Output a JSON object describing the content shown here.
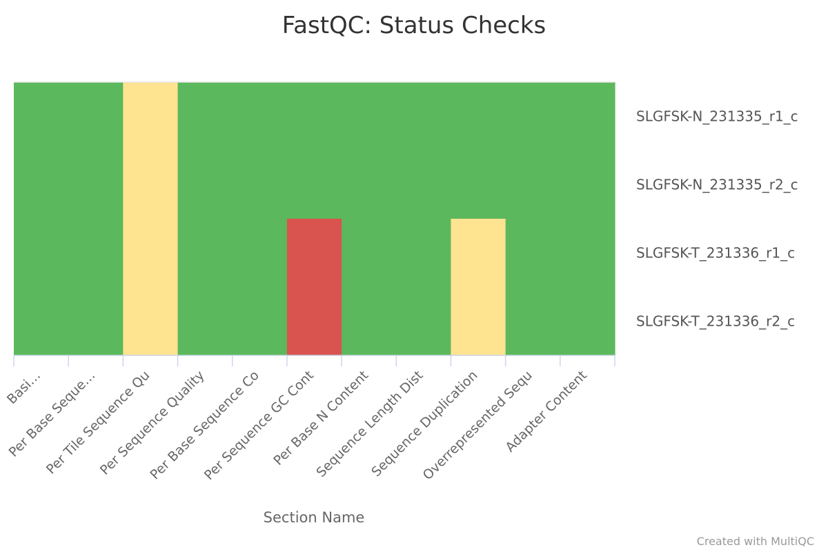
{
  "chart_data": {
    "type": "heatmap",
    "title": "FastQC: Status Checks",
    "xlabel": "Section Name",
    "ylabel": "",
    "x_tick_labels": [
      "Basi…",
      "Per Base Seque…",
      "Per Tile Sequence Qu",
      "Per Sequence Quality",
      "Per Base Sequence Co",
      "Per Sequence GC Cont",
      "Per Base N Content",
      "Sequence Length Dist",
      "Sequence Duplication",
      "Overrepresented Sequ",
      "Adapter Content"
    ],
    "rows": [
      "SLGFSK-N_231335_r1_c",
      "SLGFSK-N_231335_r2_c",
      "SLGFSK-T_231336_r1_c",
      "SLGFSK-T_231336_r2_c"
    ],
    "values": [
      [
        "pass",
        "pass",
        "warn",
        "pass",
        "pass",
        "pass",
        "pass",
        "pass",
        "pass",
        "pass",
        "pass"
      ],
      [
        "pass",
        "pass",
        "warn",
        "pass",
        "pass",
        "pass",
        "pass",
        "pass",
        "pass",
        "pass",
        "pass"
      ],
      [
        "pass",
        "pass",
        "warn",
        "pass",
        "pass",
        "fail",
        "pass",
        "pass",
        "warn",
        "pass",
        "pass"
      ],
      [
        "pass",
        "pass",
        "warn",
        "pass",
        "pass",
        "fail",
        "pass",
        "pass",
        "warn",
        "pass",
        "pass"
      ]
    ],
    "status_colors": {
      "pass": "#5cb85c",
      "warn": "#fee391",
      "fail": "#d9534f"
    },
    "legend": "none"
  },
  "footer": {
    "credit": "Created with MultiQC"
  }
}
